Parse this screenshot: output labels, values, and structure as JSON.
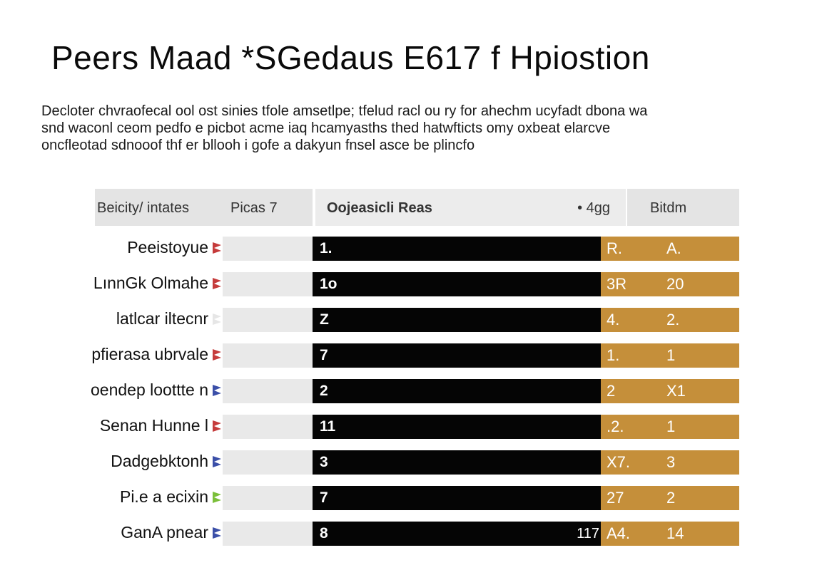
{
  "header": {
    "title": "Peers Maad *SGedaus E617 f Hpiostion"
  },
  "intro": {
    "lines": [
      "Decloter chvraofecal ool ost sinies tfole amsetlpe; tfelud racl ou ry for ahechm ucyfadt dbona wa",
      "snd waconl ceom pedfo e picbot acme iaq hcamyasths thed hatwfticts omy oxbeat elarcve",
      "oncfleotad sdnooof thf er bllooh i gofe a dakyun fnsel asce be plincfo"
    ]
  },
  "table": {
    "headers": {
      "left_a": "Beicity/ intates",
      "left_b": "Picas 7",
      "middle": "Oojeasicli Reas",
      "middle_right": "• 4gg",
      "right": "Bitdm"
    },
    "rows": [
      {
        "label": "Peeistoyue",
        "black_value": "1.",
        "black_end": "",
        "gold_a": "R.",
        "gold_b": "A.",
        "flag_color": "#c53b3b"
      },
      {
        "label": "LınnGk Olmahe",
        "black_value": "1o",
        "black_end": "",
        "gold_a": "3R",
        "gold_b": "20",
        "flag_color": "#c53b3b"
      },
      {
        "label": "latlcar iltecnr",
        "black_value": "Z",
        "black_end": "",
        "gold_a": "4.",
        "gold_b": "2.",
        "flag_color": "#e6e6e6"
      },
      {
        "label": "pfierasa ubrvale",
        "black_value": "7",
        "black_end": "",
        "gold_a": "1.",
        "gold_b": "1",
        "flag_color": "#c53b3b"
      },
      {
        "label": "oendep loottte n",
        "black_value": "2",
        "black_end": "",
        "gold_a": "2",
        "gold_b": "X1",
        "flag_color": "#3b4fa8"
      },
      {
        "label": "Senan Hunne l",
        "black_value": "11",
        "black_end": "",
        "gold_a": ".2.",
        "gold_b": "1",
        "flag_color": "#c53b3b"
      },
      {
        "label": "Dadgebktonh",
        "black_value": "3",
        "black_end": "",
        "gold_a": "X7.",
        "gold_b": "3",
        "flag_color": "#3b4fa8"
      },
      {
        "label": "Pi.e a ecixin",
        "black_value": "7",
        "black_end": "",
        "gold_a": "27",
        "gold_b": "2",
        "flag_color": "#7bbf3a"
      },
      {
        "label": "GanA pnear",
        "black_value": "8",
        "black_end": "117",
        "gold_a": "A4.",
        "gold_b": "14",
        "flag_color": "#3b4fa8"
      }
    ]
  }
}
